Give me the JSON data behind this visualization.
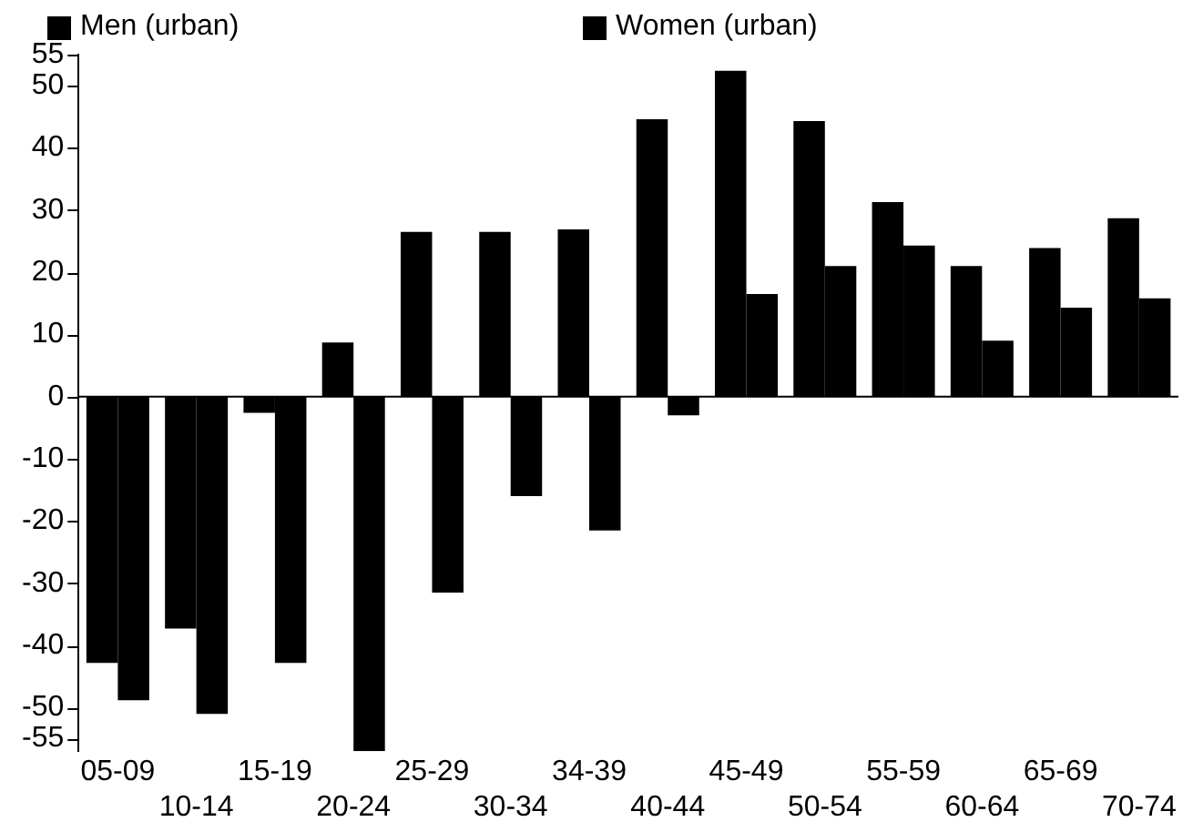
{
  "chart_data": {
    "type": "bar",
    "categories": [
      "05-09",
      "10-14",
      "15-19",
      "20-24",
      "25-29",
      "30-34",
      "34-39",
      "40-44",
      "45-49",
      "50-54",
      "55-59",
      "60-64",
      "65-69",
      "70-74"
    ],
    "series": [
      {
        "name": "Men (urban)",
        "color": "#000000",
        "values": [
          -42.8,
          -37.3,
          -2.6,
          8.7,
          26.5,
          26.5,
          26.9,
          44.6,
          52.4,
          44.3,
          31.3,
          21,
          23.9,
          28.7
        ]
      },
      {
        "name": "Women (urban)",
        "color": "#000000",
        "values": [
          -48.8,
          -51,
          -42.8,
          -57,
          -31.5,
          -16,
          -21.5,
          -3,
          16.5,
          21,
          24.3,
          9,
          14.3,
          15.8
        ]
      }
    ],
    "ylim": [
      -57,
      55
    ],
    "yticks": [
      -55,
      -50,
      -40,
      -30,
      -20,
      -10,
      0,
      10,
      20,
      30,
      40,
      50,
      55
    ],
    "grid": false,
    "ref_lines": [
      {
        "axis": "y",
        "value": 0,
        "color": "#000000"
      }
    ],
    "legend": "top"
  }
}
